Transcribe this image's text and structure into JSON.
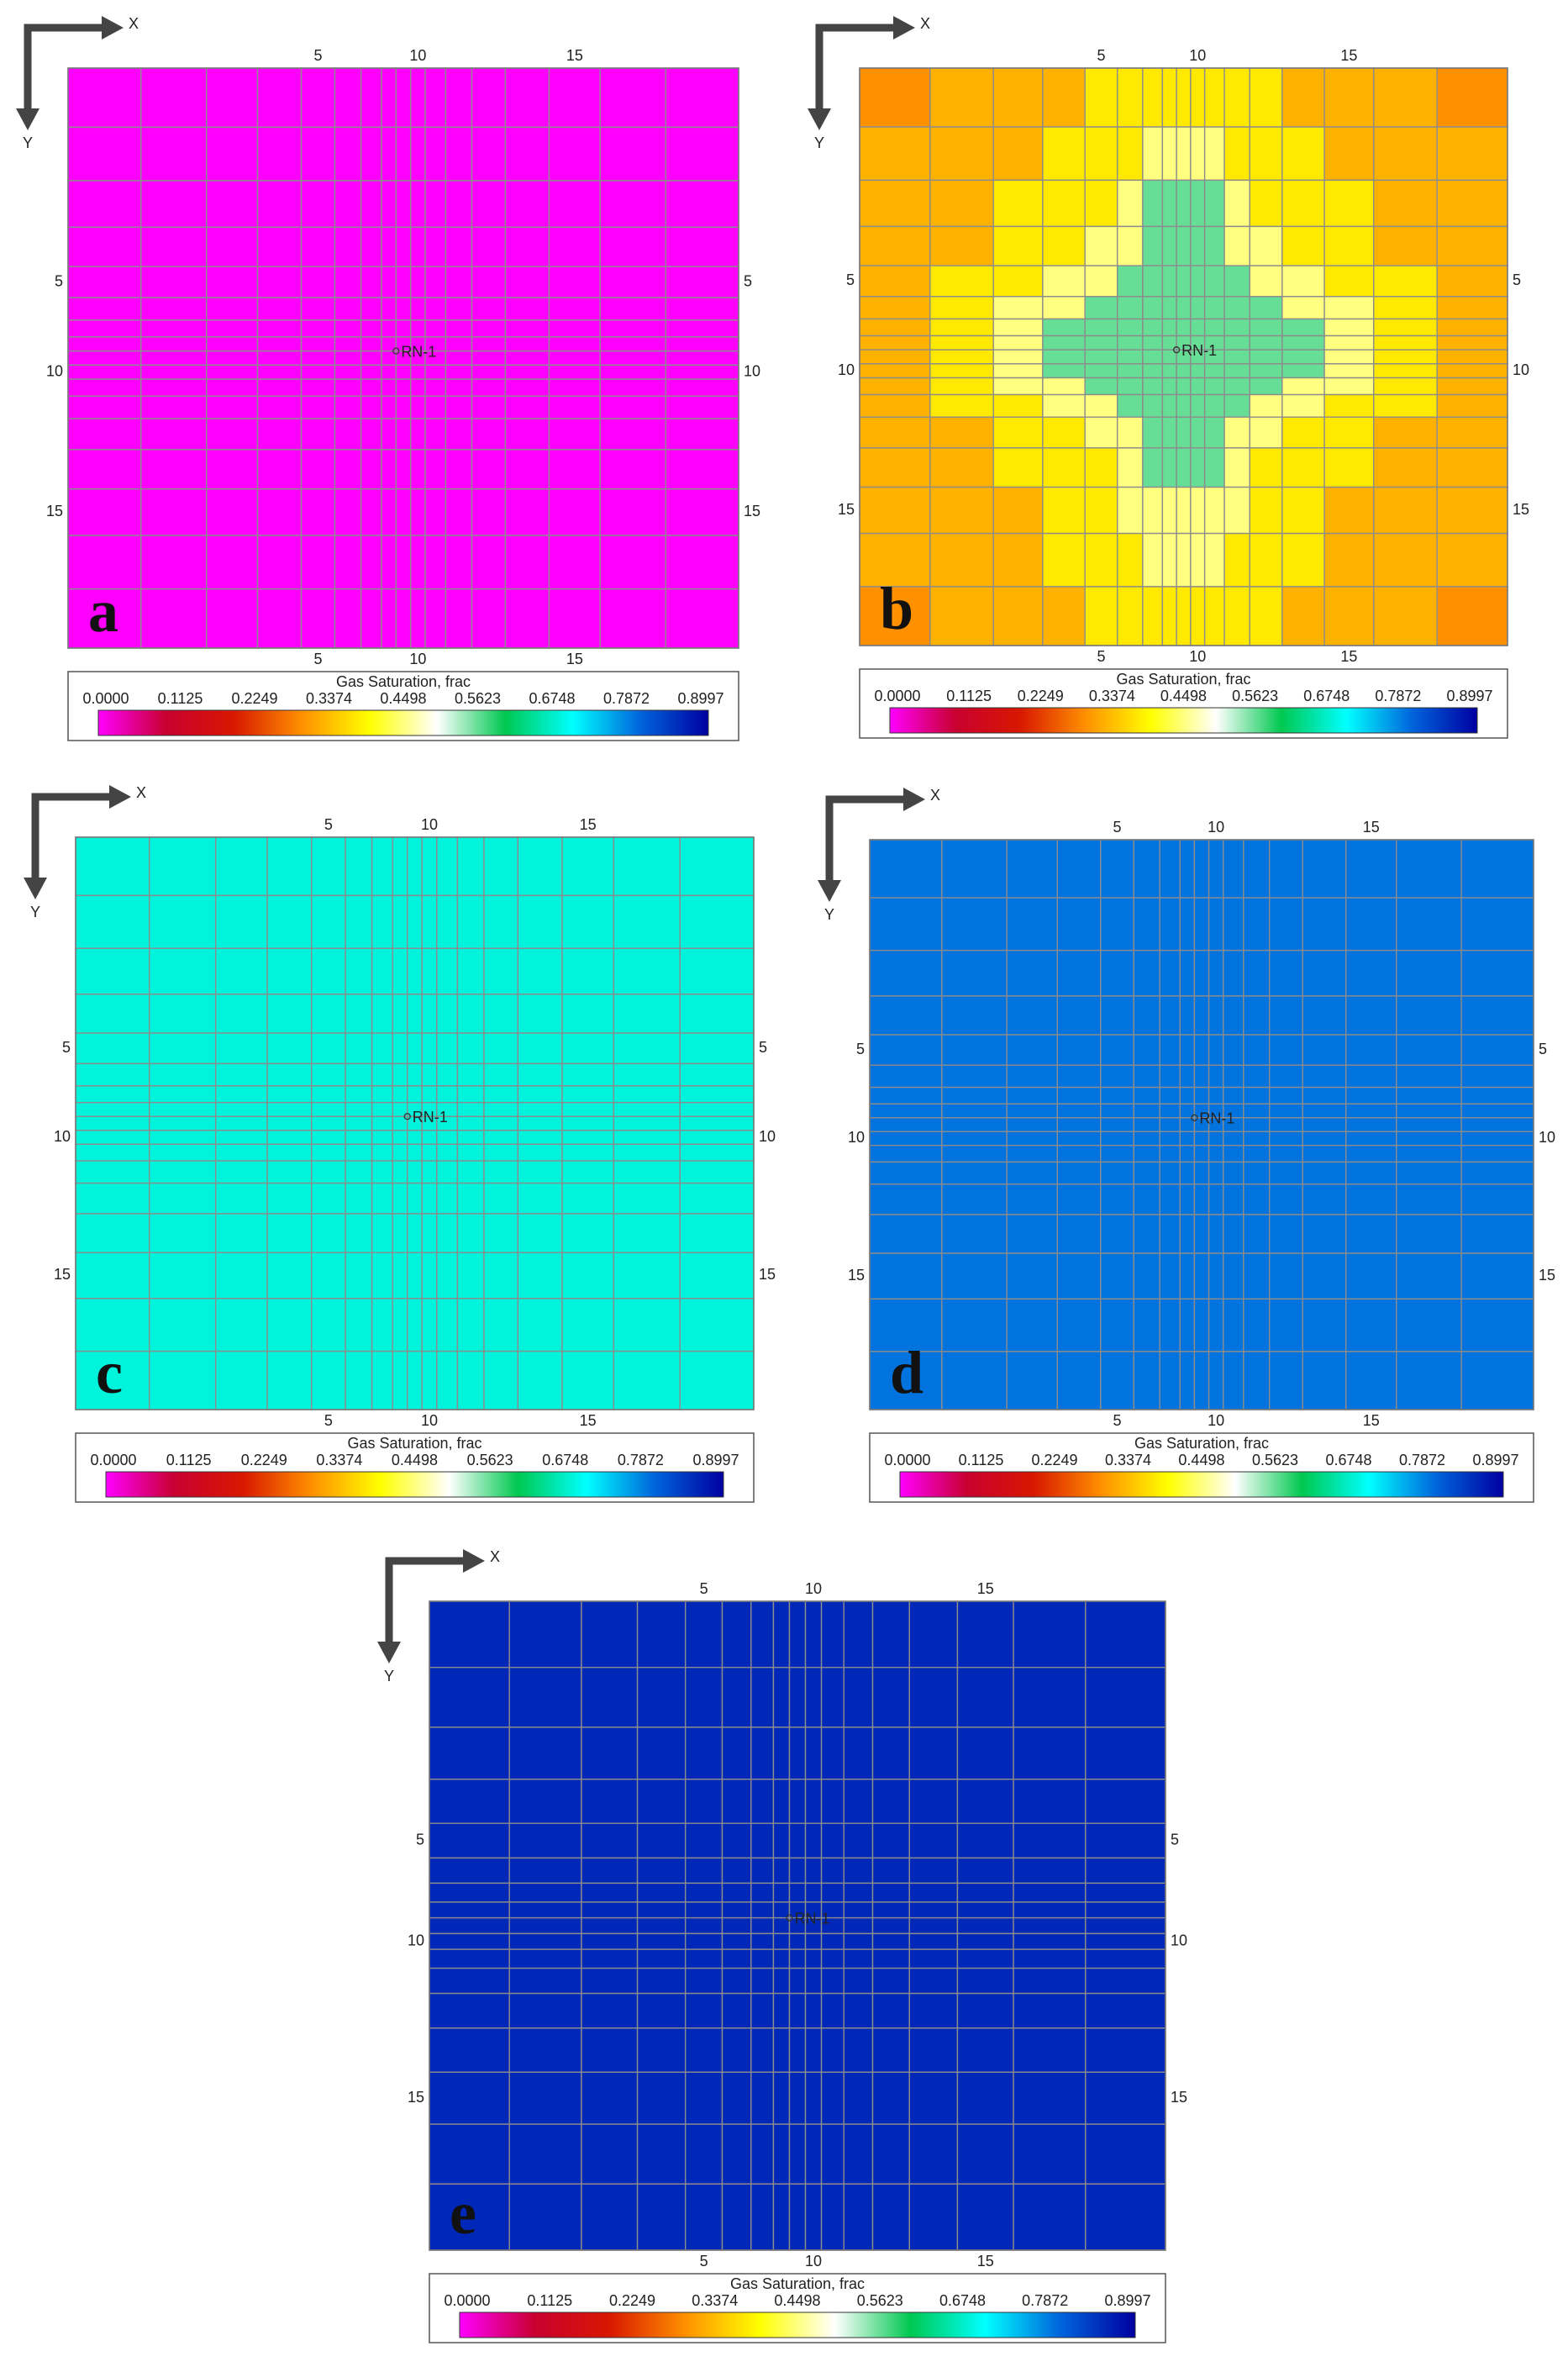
{
  "chart_data": [
    {
      "type": "heatmap",
      "label": "a",
      "x_axis": "X",
      "y_axis": "Y",
      "xticks": [
        5,
        10,
        15
      ],
      "yticks": [
        5,
        10,
        15
      ],
      "well": "RN-1",
      "colorbar_title": "Gas Saturation, frac",
      "clim": [
        0,
        0.8997
      ],
      "cticks": [
        {
          "value": 0,
          "label": "0.0000"
        },
        0.1125,
        0.2249,
        0.3374,
        0.4498,
        0.5623,
        0.6748,
        0.7872,
        0.8997
      ],
      "colormap": [
        "#ff00ff",
        "#c80030",
        "#d81800",
        "#ff9000",
        "#ffff00",
        "#ffffff",
        "#00c850",
        "#00ffff",
        "#0064dc",
        "#0000a0"
      ],
      "value": 0
    },
    {
      "type": "heatmap",
      "label": "b",
      "x_axis": "X",
      "y_axis": "Y",
      "xticks": [
        5,
        10,
        15
      ],
      "yticks": [
        5,
        10,
        15
      ],
      "well": "RN-1",
      "colorbar_title": "Gas Saturation, frac",
      "clim": [
        0,
        0.8997
      ],
      "cticks": [
        {
          "value": 0,
          "label": "0.0000"
        },
        0.1125,
        0.2249,
        0.3374,
        0.4498,
        0.5623,
        0.6748,
        0.7872,
        0.8997
      ],
      "colormap": [
        "#ff00ff",
        "#c80030",
        "#d81800",
        "#ff9000",
        "#ffff00",
        "#ffffff",
        "#00c850",
        "#00ffff",
        "#0064dc",
        "#0000a0"
      ],
      "values": [
        [
          0.3,
          0.33,
          0.33,
          0.33,
          0.38,
          0.38,
          0.38,
          0.38,
          0.38,
          0.38,
          0.38,
          0.38,
          0.38,
          0.33,
          0.33,
          0.33,
          0.3
        ],
        [
          0.33,
          0.33,
          0.33,
          0.38,
          0.38,
          0.38,
          0.45,
          0.45,
          0.45,
          0.45,
          0.45,
          0.38,
          0.38,
          0.38,
          0.33,
          0.33,
          0.33
        ],
        [
          0.33,
          0.33,
          0.38,
          0.38,
          0.38,
          0.45,
          0.56,
          0.56,
          0.56,
          0.56,
          0.56,
          0.45,
          0.38,
          0.38,
          0.38,
          0.33,
          0.33
        ],
        [
          0.33,
          0.33,
          0.38,
          0.38,
          0.45,
          0.45,
          0.56,
          0.56,
          0.56,
          0.56,
          0.56,
          0.45,
          0.45,
          0.38,
          0.38,
          0.33,
          0.33
        ],
        [
          0.33,
          0.38,
          0.38,
          0.45,
          0.45,
          0.56,
          0.56,
          0.56,
          0.56,
          0.56,
          0.56,
          0.56,
          0.45,
          0.45,
          0.38,
          0.38,
          0.33
        ],
        [
          0.33,
          0.38,
          0.45,
          0.45,
          0.56,
          0.56,
          0.56,
          0.56,
          0.56,
          0.56,
          0.56,
          0.56,
          0.56,
          0.45,
          0.45,
          0.38,
          0.33
        ],
        [
          0.33,
          0.38,
          0.45,
          0.56,
          0.56,
          0.56,
          0.56,
          0.56,
          0.56,
          0.56,
          0.56,
          0.56,
          0.56,
          0.56,
          0.45,
          0.38,
          0.33
        ],
        [
          0.33,
          0.38,
          0.45,
          0.56,
          0.56,
          0.56,
          0.56,
          0.56,
          0.56,
          0.56,
          0.56,
          0.56,
          0.56,
          0.56,
          0.45,
          0.38,
          0.33
        ],
        [
          0.33,
          0.38,
          0.45,
          0.56,
          0.56,
          0.56,
          0.56,
          0.56,
          0.56,
          0.56,
          0.56,
          0.56,
          0.56,
          0.56,
          0.45,
          0.38,
          0.33
        ],
        [
          0.33,
          0.38,
          0.45,
          0.56,
          0.56,
          0.56,
          0.56,
          0.56,
          0.56,
          0.56,
          0.56,
          0.56,
          0.56,
          0.56,
          0.45,
          0.38,
          0.33
        ],
        [
          0.33,
          0.38,
          0.45,
          0.45,
          0.56,
          0.56,
          0.56,
          0.56,
          0.56,
          0.56,
          0.56,
          0.56,
          0.56,
          0.45,
          0.45,
          0.38,
          0.33
        ],
        [
          0.33,
          0.38,
          0.38,
          0.45,
          0.45,
          0.56,
          0.56,
          0.56,
          0.56,
          0.56,
          0.56,
          0.56,
          0.45,
          0.45,
          0.38,
          0.38,
          0.33
        ],
        [
          0.33,
          0.33,
          0.38,
          0.38,
          0.45,
          0.45,
          0.56,
          0.56,
          0.56,
          0.56,
          0.56,
          0.45,
          0.45,
          0.38,
          0.38,
          0.33,
          0.33
        ],
        [
          0.33,
          0.33,
          0.38,
          0.38,
          0.38,
          0.45,
          0.56,
          0.56,
          0.56,
          0.56,
          0.56,
          0.45,
          0.38,
          0.38,
          0.38,
          0.33,
          0.33
        ],
        [
          0.33,
          0.33,
          0.33,
          0.38,
          0.38,
          0.45,
          0.45,
          0.45,
          0.45,
          0.45,
          0.45,
          0.45,
          0.38,
          0.38,
          0.33,
          0.33,
          0.33
        ],
        [
          0.33,
          0.33,
          0.33,
          0.38,
          0.38,
          0.38,
          0.45,
          0.45,
          0.45,
          0.45,
          0.45,
          0.38,
          0.38,
          0.38,
          0.33,
          0.33,
          0.33
        ],
        [
          0.3,
          0.33,
          0.33,
          0.33,
          0.38,
          0.38,
          0.38,
          0.38,
          0.38,
          0.38,
          0.38,
          0.38,
          0.38,
          0.33,
          0.33,
          0.33,
          0.3
        ]
      ]
    },
    {
      "type": "heatmap",
      "label": "c",
      "x_axis": "X",
      "y_axis": "Y",
      "xticks": [
        5,
        10,
        15
      ],
      "yticks": [
        5,
        10,
        15
      ],
      "well": "RN-1",
      "colorbar_title": "Gas Saturation, frac",
      "clim": [
        0,
        0.8997
      ],
      "cticks": [
        {
          "value": 0,
          "label": "0.0000"
        },
        0.1125,
        0.2249,
        0.3374,
        0.4498,
        0.5623,
        0.6748,
        0.7872,
        0.8997
      ],
      "colormap": [
        "#ff00ff",
        "#c80030",
        "#d81800",
        "#ff9000",
        "#ffff00",
        "#ffffff",
        "#00c850",
        "#00ffff",
        "#0064dc",
        "#0000a0"
      ],
      "value": 0.68
    },
    {
      "type": "heatmap",
      "label": "d",
      "x_axis": "X",
      "y_axis": "Y",
      "xticks": [
        5,
        10,
        15
      ],
      "yticks": [
        5,
        10,
        15
      ],
      "well": "RN-1",
      "colorbar_title": "Gas Saturation, frac",
      "clim": [
        0,
        0.8997
      ],
      "cticks": [
        {
          "value": 0,
          "label": "0.0000"
        },
        0.1125,
        0.2249,
        0.3374,
        0.4498,
        0.5623,
        0.6748,
        0.7872,
        0.8997
      ],
      "colormap": [
        "#ff00ff",
        "#c80030",
        "#d81800",
        "#ff9000",
        "#ffff00",
        "#ffffff",
        "#00c850",
        "#00ffff",
        "#0064dc",
        "#0000a0"
      ],
      "value": 0.79
    },
    {
      "type": "heatmap",
      "label": "e",
      "x_axis": "X",
      "y_axis": "Y",
      "xticks": [
        5,
        10,
        15
      ],
      "yticks": [
        5,
        10,
        15
      ],
      "well": "RN-1",
      "colorbar_title": "Gas Saturation, frac",
      "clim": [
        0,
        0.8997
      ],
      "cticks": [
        {
          "value": 0,
          "label": "0.0000"
        },
        0.1125,
        0.2249,
        0.3374,
        0.4498,
        0.5623,
        0.6748,
        0.7872,
        0.8997
      ],
      "colormap": [
        "#ff00ff",
        "#c80030",
        "#d81800",
        "#ff9000",
        "#ffff00",
        "#ffffff",
        "#00c850",
        "#00ffff",
        "#0064dc",
        "#0000a0"
      ],
      "value": 0.86
    }
  ]
}
